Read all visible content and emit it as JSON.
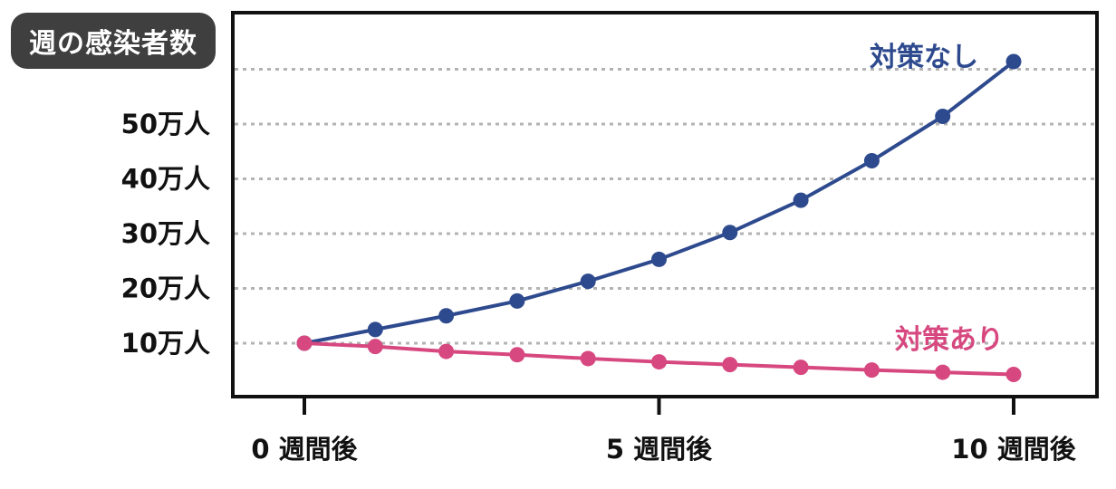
{
  "chart_data": {
    "type": "line",
    "title": "週の感染者数",
    "x": [
      0,
      1,
      2,
      3,
      4,
      5,
      6,
      7,
      8,
      9,
      10
    ],
    "x_ticks": [
      {
        "value": 0,
        "label": "0 週間後"
      },
      {
        "value": 5,
        "label": "5 週間後"
      },
      {
        "value": 10,
        "label": "10 週間後"
      }
    ],
    "y_ticks": [
      {
        "value": 10,
        "label": "10万人"
      },
      {
        "value": 20,
        "label": "20万人"
      },
      {
        "value": 30,
        "label": "30万人"
      },
      {
        "value": 40,
        "label": "40万人"
      },
      {
        "value": 50,
        "label": "50万人"
      }
    ],
    "y_unit": "万人",
    "ylim": [
      0,
      70
    ],
    "gridlines_y": [
      10,
      20,
      30,
      40,
      50,
      60
    ],
    "grid": "horizontal dotted",
    "series": [
      {
        "name": "対策なし",
        "color": "#2e4a8e",
        "values": [
          10,
          12.5,
          15,
          17.7,
          21.3,
          25.3,
          30.2,
          36.1,
          43.3,
          51.4,
          61.4
        ]
      },
      {
        "name": "対策あり",
        "color": "#d6487f",
        "values": [
          10,
          9.4,
          8.5,
          7.9,
          7.2,
          6.6,
          6.1,
          5.6,
          5.1,
          4.7,
          4.3
        ]
      }
    ]
  }
}
